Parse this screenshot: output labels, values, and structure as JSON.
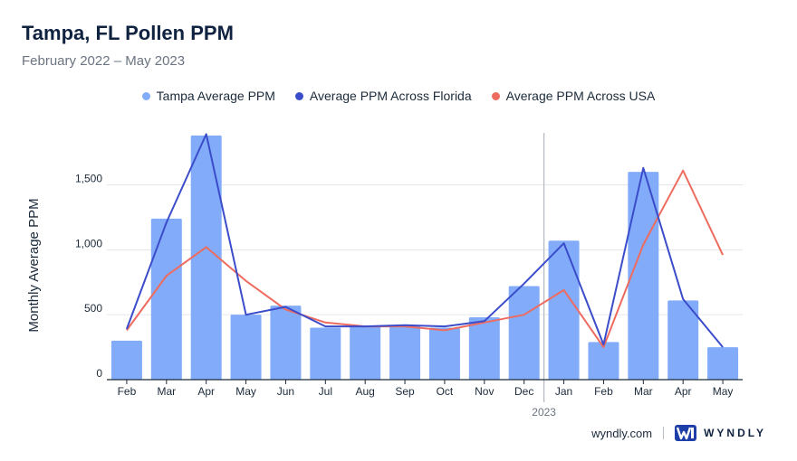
{
  "header": {
    "title": "Tampa, FL Pollen PPM",
    "subtitle": "February 2022 – May 2023"
  },
  "footer": {
    "site": "wyndly.com",
    "brand": "WYNDLY"
  },
  "colors": {
    "bars": "#82acfa",
    "florida": "#3b4cca",
    "usa": "#ee6b5f",
    "grid": "#e3e6ea",
    "axis_text": "#1b2a3a"
  },
  "chart_data": {
    "type": "bar",
    "title": "Tampa, FL Pollen PPM",
    "subtitle": "February 2022 – May 2023",
    "xlabel": "",
    "ylabel": "Monthly Average PPM",
    "ylim": [
      0,
      1900
    ],
    "yticks": [
      0,
      500,
      1000,
      1500
    ],
    "ytick_labels": [
      "0",
      "500",
      "1,000",
      "1,500"
    ],
    "grid": true,
    "legend_position": "top-center",
    "categories": [
      "Feb",
      "Mar",
      "Apr",
      "May",
      "Jun",
      "Jul",
      "Aug",
      "Sep",
      "Oct",
      "Nov",
      "Dec",
      "Jan",
      "Feb",
      "Mar",
      "Apr",
      "May"
    ],
    "year_marker": {
      "label": "2023",
      "before_index": 11
    },
    "series": [
      {
        "name": "Tampa Average PPM",
        "type": "bar",
        "values": [
          300,
          1240,
          1880,
          500,
          570,
          400,
          410,
          420,
          400,
          480,
          720,
          1070,
          290,
          1600,
          610,
          250
        ]
      },
      {
        "name": "Average PPM Across Florida",
        "type": "line",
        "values": [
          390,
          1210,
          1890,
          500,
          560,
          410,
          410,
          420,
          410,
          450,
          740,
          1050,
          270,
          1630,
          620,
          250
        ]
      },
      {
        "name": "Average PPM Across USA",
        "type": "line",
        "values": [
          380,
          800,
          1020,
          760,
          540,
          440,
          410,
          410,
          380,
          440,
          500,
          690,
          250,
          1040,
          1610,
          960
        ]
      }
    ]
  }
}
